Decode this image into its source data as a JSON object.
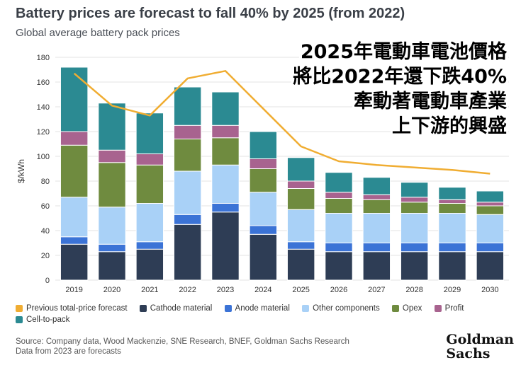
{
  "title": "Battery prices are forecast to fall 40% by 2025 (from 2022)",
  "subtitle": "Global average battery pack prices",
  "overlay_lines": [
    "2025年電動車電池價格",
    "將比2022年還下跌40%",
    "牽動著電動車產業",
    "上下游的興盛"
  ],
  "source_line1": "Source: Company data, Wood Mackenzie, SNE Research, BNEF, Goldman Sachs Research",
  "source_line2": "Data from 2023 are forecasts",
  "logo_line1": "Goldman",
  "logo_line2": "Sachs",
  "chart_data": {
    "type": "bar",
    "stacked": true,
    "ylabel": "$/kWh",
    "ylim": [
      0,
      180
    ],
    "yticks": [
      0,
      20,
      40,
      60,
      80,
      100,
      120,
      140,
      160,
      180
    ],
    "grid": true,
    "legend_position": "bottom",
    "categories": [
      "2019",
      "2020",
      "2021",
      "2022",
      "2023",
      "2024",
      "2025",
      "2026",
      "2027",
      "2028",
      "2029",
      "2030"
    ],
    "series": [
      {
        "name": "Cathode material",
        "color": "#2e3d55",
        "values": [
          29,
          23,
          25,
          45,
          55,
          37,
          25,
          23,
          23,
          23,
          23,
          23
        ]
      },
      {
        "name": "Anode material",
        "color": "#3b73d6",
        "values": [
          6,
          6,
          6,
          8,
          7,
          7,
          6,
          7,
          7,
          7,
          7,
          7
        ]
      },
      {
        "name": "Other components",
        "color": "#a9d1f7",
        "values": [
          32,
          30,
          31,
          35,
          31,
          27,
          26,
          24,
          24,
          24,
          24,
          23
        ]
      },
      {
        "name": "Opex",
        "color": "#6f8b3f",
        "values": [
          42,
          36,
          31,
          26,
          22,
          19,
          17,
          12,
          11,
          9,
          8,
          7
        ]
      },
      {
        "name": "Profit",
        "color": "#a8638f",
        "values": [
          11,
          10,
          9,
          11,
          10,
          8,
          6,
          5,
          4,
          4,
          3,
          3
        ]
      },
      {
        "name": "Cell-to-pack",
        "color": "#2b8a92",
        "values": [
          52,
          38,
          33,
          31,
          27,
          22,
          19,
          16,
          14,
          12,
          10,
          9
        ]
      }
    ],
    "line_series": {
      "name": "Previous total-price forecast",
      "color": "#f0ad32",
      "values": [
        167,
        141,
        133,
        163,
        169,
        null,
        108,
        96,
        93,
        91,
        89,
        86
      ]
    }
  }
}
